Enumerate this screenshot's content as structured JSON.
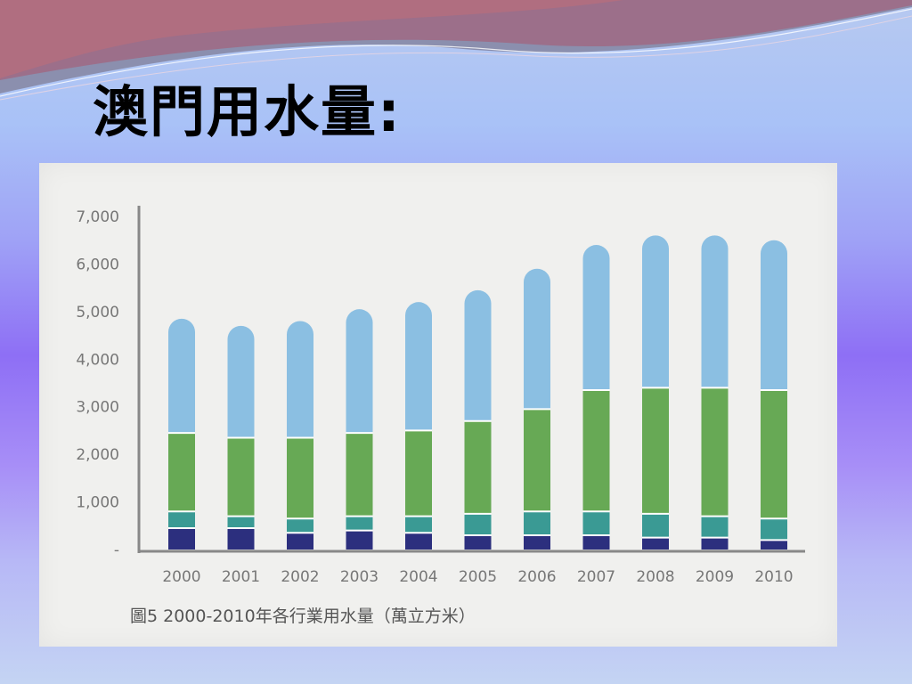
{
  "slide": {
    "title": "澳門用水量:"
  },
  "colors": {
    "bottom": "#2c2f7e",
    "teal": "#3a9a94",
    "green": "#67a955",
    "blue": "#8bbfe2",
    "axis": "#888888",
    "text": "#777777"
  },
  "chart_data": {
    "type": "bar",
    "stacked": true,
    "title": "圖5  2000-2010年各行業用水量（萬立方米）",
    "xlabel": "",
    "ylabel": "",
    "ylim": [
      0,
      7000
    ],
    "yticks": [
      "-",
      "1,000",
      "2,000",
      "3,000",
      "4,000",
      "5,000",
      "6,000",
      "7,000"
    ],
    "categories": [
      "2000",
      "2001",
      "2002",
      "2003",
      "2004",
      "2005",
      "2006",
      "2007",
      "2008",
      "2009",
      "2010"
    ],
    "series": [
      {
        "color_key": "bottom",
        "values": [
          450,
          450,
          350,
          400,
          350,
          300,
          300,
          300,
          250,
          250,
          200
        ]
      },
      {
        "color_key": "teal",
        "values": [
          350,
          250,
          300,
          300,
          350,
          450,
          500,
          500,
          500,
          450,
          450
        ]
      },
      {
        "color_key": "green",
        "values": [
          1650,
          1650,
          1700,
          1750,
          1800,
          1950,
          2150,
          2550,
          2650,
          2700,
          2700
        ]
      },
      {
        "color_key": "blue",
        "values": [
          2400,
          2350,
          2450,
          2600,
          2700,
          2750,
          2950,
          3050,
          3200,
          3200,
          3150
        ]
      }
    ]
  }
}
